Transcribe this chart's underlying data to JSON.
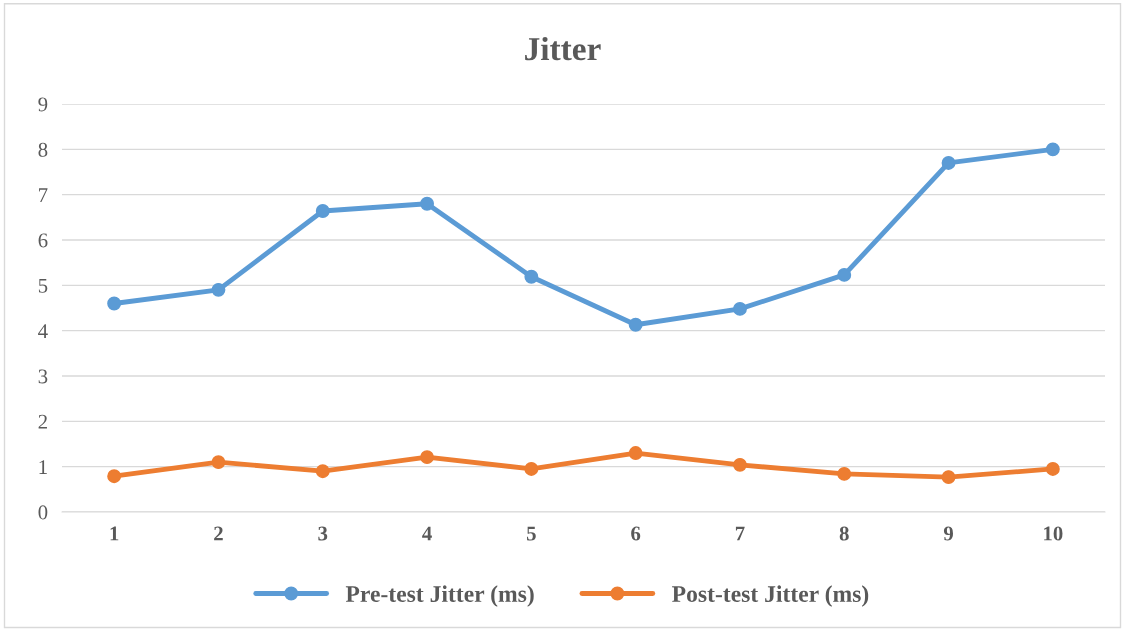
{
  "chart_data": {
    "type": "line",
    "title": "Jitter",
    "categories": [
      "1",
      "2",
      "3",
      "4",
      "5",
      "6",
      "7",
      "8",
      "9",
      "10"
    ],
    "series": [
      {
        "name": "Pre-test Jitter (ms)",
        "color": "#5b9bd5",
        "values": [
          4.6,
          4.9,
          6.64,
          6.8,
          5.19,
          4.13,
          4.48,
          5.23,
          7.7,
          8.0
        ]
      },
      {
        "name": "Post-test Jitter (ms)",
        "color": "#ed7d31",
        "values": [
          0.79,
          1.1,
          0.9,
          1.21,
          0.95,
          1.3,
          1.04,
          0.84,
          0.77,
          0.95
        ]
      }
    ],
    "ylim": [
      0,
      9
    ],
    "yticks": [
      0,
      1,
      2,
      3,
      4,
      5,
      6,
      7,
      8,
      9
    ],
    "grid": "y",
    "legend": "bottom",
    "marker": "circle",
    "line_style": "solid"
  }
}
